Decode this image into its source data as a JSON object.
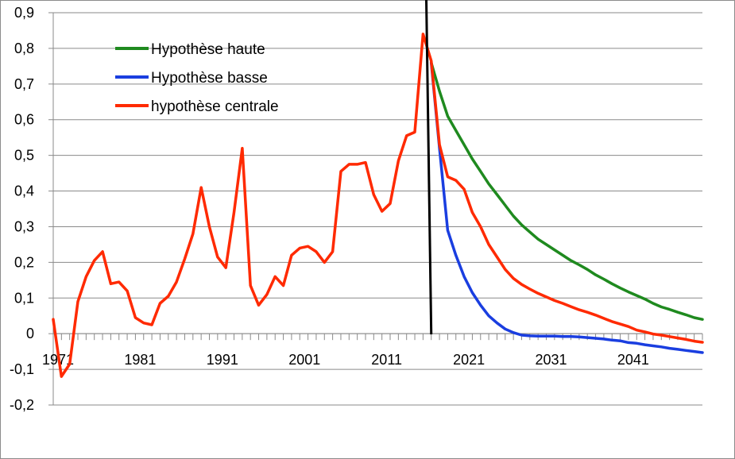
{
  "chart_data": {
    "type": "line",
    "title": "",
    "xlabel": "",
    "ylabel": "",
    "ylim": [
      -0.2,
      0.9
    ],
    "yticks": [
      -0.2,
      -0.1,
      0,
      0.1,
      0.2,
      0.3,
      0.4,
      0.5,
      0.6,
      0.7,
      0.8,
      0.9
    ],
    "ytick_labels": [
      "-0,2",
      "-0,1",
      "0",
      "0,1",
      "0,2",
      "0,3",
      "0,4",
      "0,5",
      "0,6",
      "0,7",
      "0,8",
      "0,9"
    ],
    "xlim": [
      1971,
      2050
    ],
    "xtick_labels": [
      "1971",
      "1981",
      "1991",
      "2001",
      "2011",
      "2021",
      "2031",
      "2041"
    ],
    "xtick_values": [
      1971,
      1981,
      1991,
      2001,
      2011,
      2021,
      2031,
      2041
    ],
    "grid": "horizontal",
    "legend_position": "top-left",
    "vertical_marker": {
      "x1": 2016.4,
      "x2": 2017.0,
      "color": "#000000"
    },
    "series": [
      {
        "name": "Hypothèse haute",
        "color": "#1f8a1f",
        "x": [
          2017,
          2018,
          2019,
          2020,
          2021,
          2022,
          2023,
          2024,
          2025,
          2026,
          2027,
          2028,
          2029,
          2030,
          2031,
          2032,
          2033,
          2034,
          2035,
          2036,
          2037,
          2038,
          2039,
          2040,
          2041,
          2042,
          2043,
          2044,
          2045,
          2046,
          2047,
          2048,
          2049,
          2050
        ],
        "y": [
          0.76,
          0.68,
          0.61,
          0.57,
          0.53,
          0.49,
          0.455,
          0.42,
          0.39,
          0.36,
          0.33,
          0.305,
          0.285,
          0.265,
          0.25,
          0.235,
          0.22,
          0.205,
          0.193,
          0.18,
          0.165,
          0.153,
          0.14,
          0.128,
          0.117,
          0.107,
          0.097,
          0.085,
          0.075,
          0.068,
          0.06,
          0.053,
          0.045,
          0.04
        ]
      },
      {
        "name": "Hypothèse basse",
        "color": "#1a3ee0",
        "x": [
          2017,
          2018,
          2019,
          2020,
          2021,
          2022,
          2023,
          2024,
          2025,
          2026,
          2027,
          2028,
          2029,
          2030,
          2031,
          2032,
          2033,
          2034,
          2035,
          2036,
          2037,
          2038,
          2039,
          2040,
          2041,
          2042,
          2043,
          2044,
          2045,
          2046,
          2047,
          2048,
          2049,
          2050
        ],
        "y": [
          0.76,
          0.52,
          0.29,
          0.22,
          0.16,
          0.115,
          0.08,
          0.05,
          0.03,
          0.013,
          0.003,
          -0.004,
          -0.006,
          -0.007,
          -0.007,
          -0.007,
          -0.008,
          -0.008,
          -0.009,
          -0.011,
          -0.013,
          -0.015,
          -0.018,
          -0.02,
          -0.025,
          -0.027,
          -0.031,
          -0.034,
          -0.037,
          -0.041,
          -0.044,
          -0.047,
          -0.05,
          -0.053
        ]
      },
      {
        "name": "hypothèse centrale",
        "color": "#ff2a00",
        "x": [
          1971,
          1972,
          1973,
          1974,
          1975,
          1976,
          1977,
          1978,
          1979,
          1980,
          1981,
          1982,
          1983,
          1984,
          1985,
          1986,
          1987,
          1988,
          1989,
          1990,
          1991,
          1992,
          1993,
          1994,
          1995,
          1996,
          1997,
          1998,
          1999,
          2000,
          2001,
          2002,
          2003,
          2004,
          2005,
          2006,
          2007,
          2008,
          2009,
          2010,
          2011,
          2012,
          2013,
          2014,
          2015,
          2016,
          2017,
          2018,
          2019,
          2020,
          2021,
          2022,
          2023,
          2024,
          2025,
          2026,
          2027,
          2028,
          2029,
          2030,
          2031,
          2032,
          2033,
          2034,
          2035,
          2036,
          2037,
          2038,
          2039,
          2040,
          2041,
          2042,
          2043,
          2044,
          2045,
          2046,
          2047,
          2048,
          2049,
          2050
        ],
        "y": [
          0.04,
          -0.12,
          -0.085,
          0.09,
          0.16,
          0.205,
          0.23,
          0.14,
          0.145,
          0.12,
          0.045,
          0.03,
          0.025,
          0.085,
          0.105,
          0.145,
          0.21,
          0.28,
          0.41,
          0.3,
          0.215,
          0.185,
          0.34,
          0.52,
          0.135,
          0.08,
          0.11,
          0.16,
          0.135,
          0.22,
          0.24,
          0.245,
          0.23,
          0.2,
          0.23,
          0.455,
          0.475,
          0.475,
          0.48,
          0.39,
          0.343,
          0.365,
          0.485,
          0.555,
          0.565,
          0.84,
          0.765,
          0.53,
          0.44,
          0.43,
          0.405,
          0.34,
          0.3,
          0.25,
          0.215,
          0.18,
          0.155,
          0.138,
          0.125,
          0.113,
          0.103,
          0.093,
          0.085,
          0.076,
          0.067,
          0.06,
          0.052,
          0.043,
          0.034,
          0.027,
          0.02,
          0.01,
          0.005,
          -0.001,
          -0.004,
          -0.008,
          -0.012,
          -0.016,
          -0.021,
          -0.024
        ]
      }
    ]
  }
}
